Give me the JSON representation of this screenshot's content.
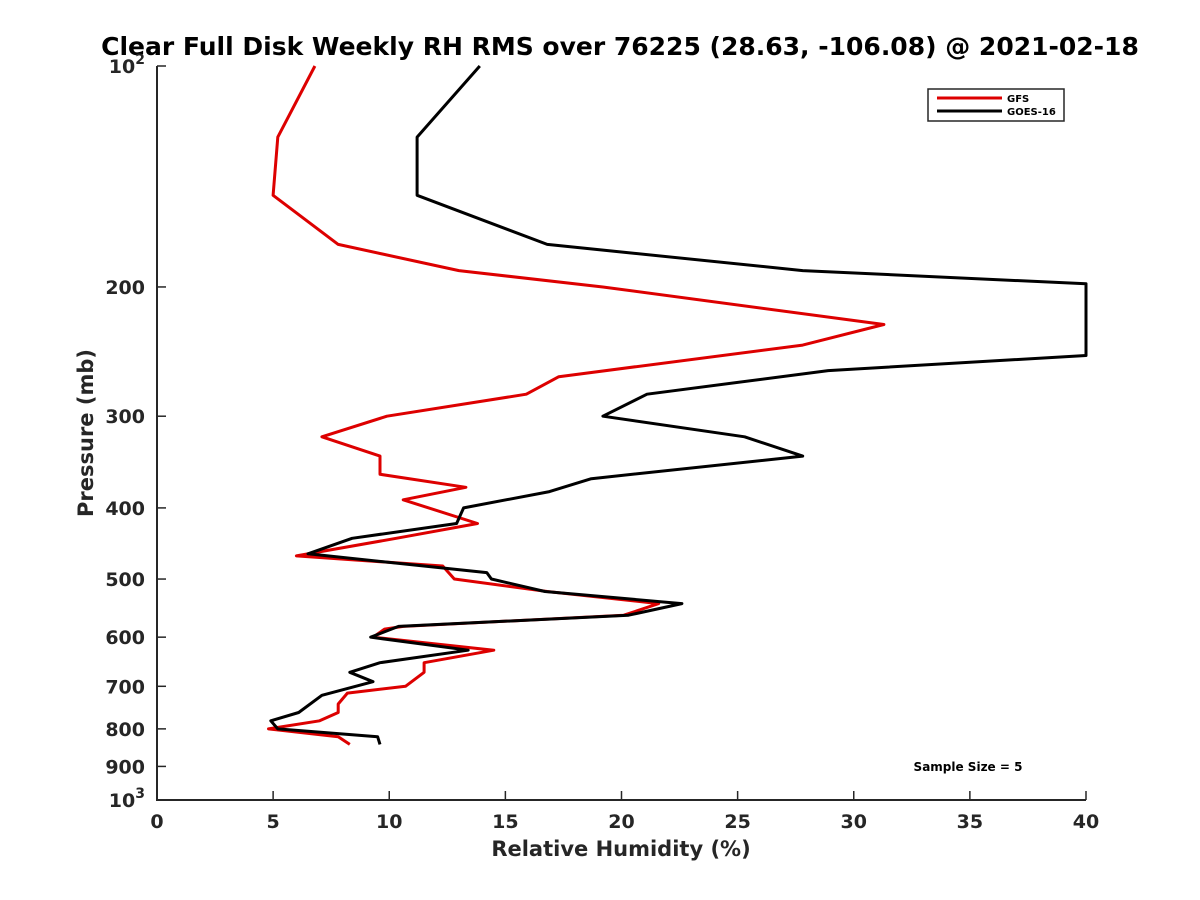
{
  "chart_data": {
    "type": "line",
    "title": "Clear Full Disk Weekly RH RMS over 76225 (28.63, -106.08) @ 2021-02-18",
    "xlabel": "Relative Humidity (%)",
    "ylabel": "Pressure (mb)",
    "xlim": [
      0,
      40
    ],
    "ylim": [
      100,
      1000
    ],
    "y_scale": "log",
    "y_reversed": true,
    "grid": false,
    "legend_position": "top-right",
    "x_ticks": [
      {
        "value": 0,
        "label": "0"
      },
      {
        "value": 5,
        "label": "5"
      },
      {
        "value": 10,
        "label": "10"
      },
      {
        "value": 15,
        "label": "15"
      },
      {
        "value": 20,
        "label": "20"
      },
      {
        "value": 25,
        "label": "25"
      },
      {
        "value": 30,
        "label": "30"
      },
      {
        "value": 35,
        "label": "35"
      },
      {
        "value": 40,
        "label": "40"
      }
    ],
    "y_ticks": [
      {
        "value": 100,
        "label": "10",
        "sup": "2"
      },
      {
        "value": 200,
        "label": "200"
      },
      {
        "value": 300,
        "label": "300"
      },
      {
        "value": 400,
        "label": "400"
      },
      {
        "value": 500,
        "label": "500"
      },
      {
        "value": 600,
        "label": "600"
      },
      {
        "value": 700,
        "label": "700"
      },
      {
        "value": 800,
        "label": "800"
      },
      {
        "value": 900,
        "label": "900"
      },
      {
        "value": 1000,
        "label": "10",
        "sup": "3"
      }
    ],
    "series": [
      {
        "name": "GFS",
        "color": "#dd0000",
        "points": [
          [
            6.8,
            100
          ],
          [
            5.2,
            125
          ],
          [
            5.0,
            150
          ],
          [
            7.8,
            175
          ],
          [
            13.0,
            190
          ],
          [
            19.2,
            200
          ],
          [
            31.3,
            225
          ],
          [
            27.8,
            240
          ],
          [
            17.3,
            265
          ],
          [
            15.9,
            280
          ],
          [
            9.9,
            300
          ],
          [
            7.1,
            320
          ],
          [
            9.6,
            340
          ],
          [
            9.6,
            360
          ],
          [
            13.3,
            375
          ],
          [
            10.6,
            390
          ],
          [
            13.8,
            420
          ],
          [
            10.3,
            440
          ],
          [
            6.0,
            465
          ],
          [
            12.3,
            480
          ],
          [
            12.8,
            500
          ],
          [
            16.8,
            520
          ],
          [
            21.6,
            540
          ],
          [
            20.1,
            560
          ],
          [
            10.6,
            580
          ],
          [
            9.8,
            585
          ],
          [
            9.3,
            600
          ],
          [
            14.5,
            625
          ],
          [
            11.5,
            650
          ],
          [
            11.5,
            670
          ],
          [
            10.7,
            700
          ],
          [
            8.2,
            715
          ],
          [
            7.8,
            740
          ],
          [
            7.8,
            760
          ],
          [
            7.0,
            780
          ],
          [
            4.8,
            800
          ],
          [
            7.8,
            820
          ],
          [
            8.3,
            840
          ]
        ]
      },
      {
        "name": "GOES-16",
        "color": "#000000",
        "points": [
          [
            13.9,
            100
          ],
          [
            11.2,
            125
          ],
          [
            11.2,
            150
          ],
          [
            16.8,
            175
          ],
          [
            27.8,
            190
          ],
          [
            40.0,
            198
          ],
          [
            40.0,
            248
          ],
          [
            28.9,
            260
          ],
          [
            21.1,
            280
          ],
          [
            19.2,
            300
          ],
          [
            25.3,
            320
          ],
          [
            27.8,
            340
          ],
          [
            18.7,
            365
          ],
          [
            16.9,
            380
          ],
          [
            13.2,
            400
          ],
          [
            12.9,
            420
          ],
          [
            8.4,
            440
          ],
          [
            6.5,
            462
          ],
          [
            14.2,
            490
          ],
          [
            14.4,
            500
          ],
          [
            16.7,
            520
          ],
          [
            22.6,
            540
          ],
          [
            20.3,
            560
          ],
          [
            10.4,
            580
          ],
          [
            9.2,
            600
          ],
          [
            13.4,
            625
          ],
          [
            9.6,
            650
          ],
          [
            8.3,
            670
          ],
          [
            9.3,
            690
          ],
          [
            7.1,
            720
          ],
          [
            6.1,
            760
          ],
          [
            4.9,
            780
          ],
          [
            5.2,
            800
          ],
          [
            9.5,
            820
          ],
          [
            9.6,
            840
          ]
        ]
      }
    ],
    "annotations": [
      {
        "text": "Sample Size = 5"
      }
    ]
  }
}
